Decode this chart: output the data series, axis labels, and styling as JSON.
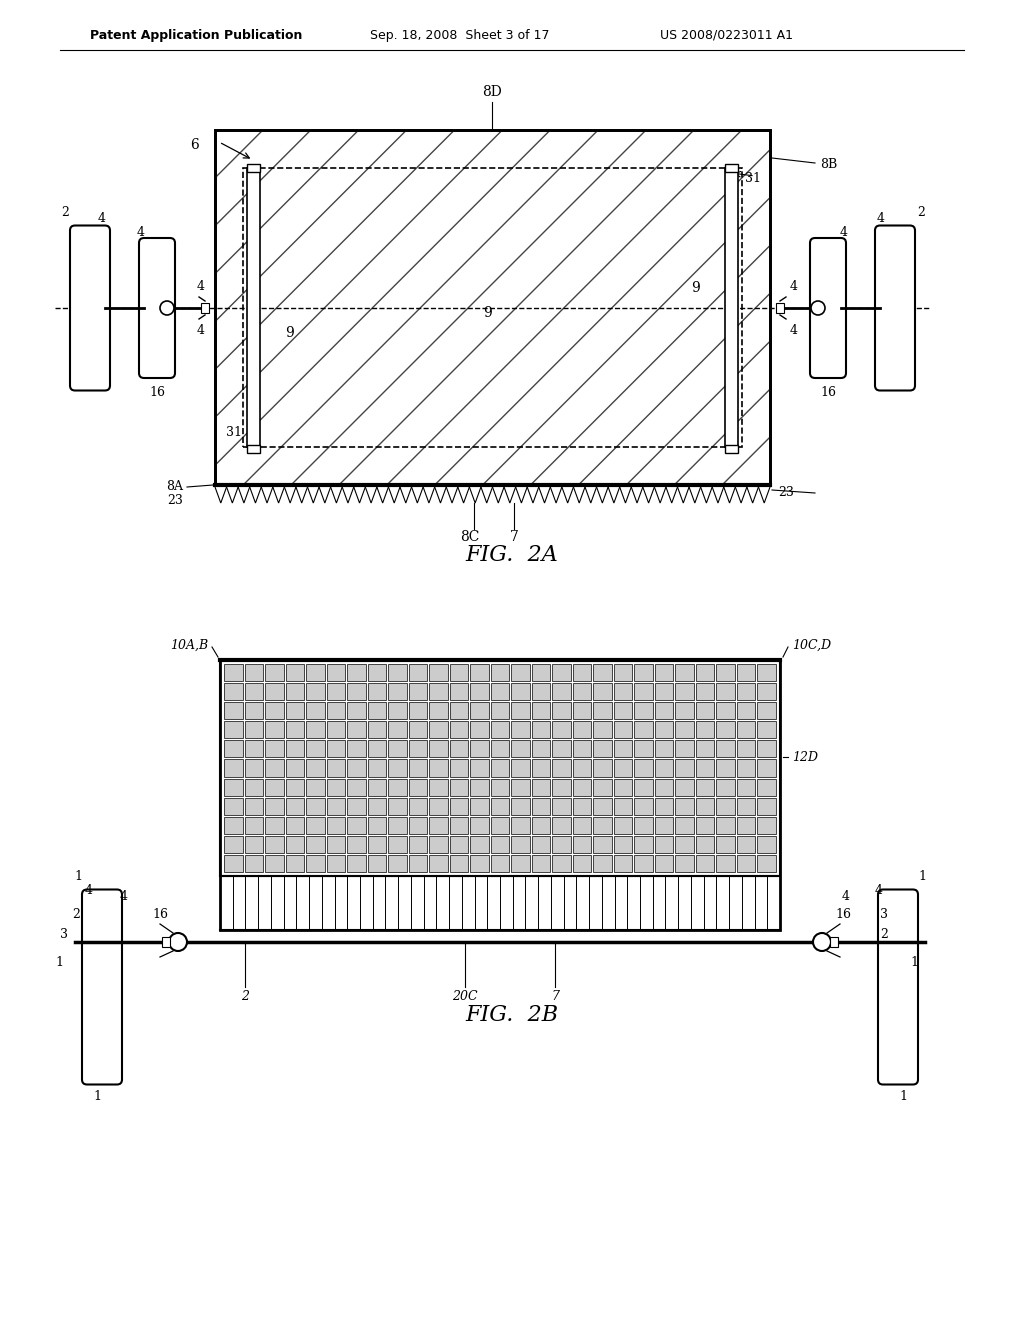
{
  "background_color": "#ffffff",
  "header_left": "Patent Application Publication",
  "header_mid": "Sep. 18, 2008  Sheet 3 of 17",
  "header_right": "US 2008/0223011 A1",
  "fig2a_label": "FIG.  2A",
  "fig2b_label": "FIG.  2B"
}
